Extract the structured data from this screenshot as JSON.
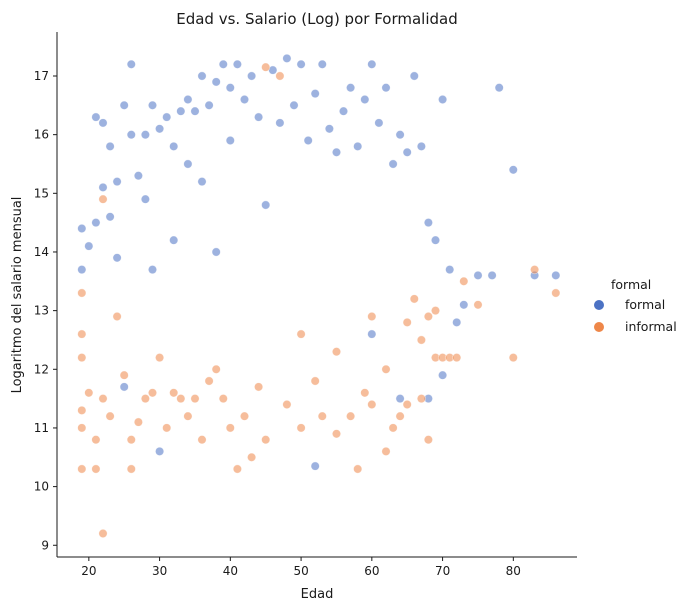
{
  "chart_data": {
    "type": "scatter",
    "title": "Edad vs. Salario (Log) por Formalidad",
    "xlabel": "Edad",
    "ylabel": "Logaritmo del salario mensual",
    "xlim": [
      15.5,
      89
    ],
    "ylim": [
      8.8,
      17.75
    ],
    "xticks": [
      20,
      30,
      40,
      50,
      60,
      70,
      80
    ],
    "yticks": [
      9,
      10,
      11,
      12,
      13,
      14,
      15,
      16,
      17
    ],
    "grid": false,
    "legend": {
      "title": "formal",
      "position": "right"
    },
    "series": [
      {
        "name": "formal",
        "color": "#4c72c4",
        "alpha": 0.55,
        "points": [
          [
            19,
            14.4
          ],
          [
            19,
            13.7
          ],
          [
            20,
            14.1
          ],
          [
            21,
            16.3
          ],
          [
            21,
            14.5
          ],
          [
            22,
            15.1
          ],
          [
            22,
            16.2
          ],
          [
            23,
            15.8
          ],
          [
            23,
            14.6
          ],
          [
            24,
            15.2
          ],
          [
            24,
            13.9
          ],
          [
            25,
            16.5
          ],
          [
            25,
            11.7
          ],
          [
            26,
            17.2
          ],
          [
            26,
            16.0
          ],
          [
            27,
            15.3
          ],
          [
            28,
            16.0
          ],
          [
            28,
            14.9
          ],
          [
            29,
            16.5
          ],
          [
            29,
            13.7
          ],
          [
            30,
            16.1
          ],
          [
            30,
            10.6
          ],
          [
            31,
            16.3
          ],
          [
            32,
            15.8
          ],
          [
            32,
            14.2
          ],
          [
            33,
            16.4
          ],
          [
            34,
            16.6
          ],
          [
            34,
            15.5
          ],
          [
            35,
            16.4
          ],
          [
            36,
            17.0
          ],
          [
            36,
            15.2
          ],
          [
            37,
            16.5
          ],
          [
            38,
            16.9
          ],
          [
            38,
            14.0
          ],
          [
            39,
            17.2
          ],
          [
            40,
            16.8
          ],
          [
            40,
            15.9
          ],
          [
            41,
            17.2
          ],
          [
            42,
            16.6
          ],
          [
            43,
            17.0
          ],
          [
            44,
            16.3
          ],
          [
            45,
            14.8
          ],
          [
            46,
            17.1
          ],
          [
            47,
            16.2
          ],
          [
            48,
            17.3
          ],
          [
            49,
            16.5
          ],
          [
            50,
            17.2
          ],
          [
            51,
            15.9
          ],
          [
            52,
            16.7
          ],
          [
            52,
            10.35
          ],
          [
            53,
            17.2
          ],
          [
            54,
            16.1
          ],
          [
            55,
            15.7
          ],
          [
            56,
            16.4
          ],
          [
            57,
            16.8
          ],
          [
            58,
            15.8
          ],
          [
            59,
            16.6
          ],
          [
            60,
            17.2
          ],
          [
            61,
            16.2
          ],
          [
            62,
            16.8
          ],
          [
            63,
            15.5
          ],
          [
            64,
            16.0
          ],
          [
            65,
            15.7
          ],
          [
            66,
            17.0
          ],
          [
            67,
            15.8
          ],
          [
            68,
            14.5
          ],
          [
            69,
            14.2
          ],
          [
            70,
            16.6
          ],
          [
            70,
            11.9
          ],
          [
            71,
            13.7
          ],
          [
            72,
            12.8
          ],
          [
            73,
            13.1
          ],
          [
            75,
            13.6
          ],
          [
            77,
            13.6
          ],
          [
            78,
            16.8
          ],
          [
            80,
            15.4
          ],
          [
            83,
            13.6
          ],
          [
            86,
            13.6
          ],
          [
            60,
            12.6
          ],
          [
            64,
            11.5
          ],
          [
            68,
            11.5
          ]
        ]
      },
      {
        "name": "informal",
        "color": "#ee8749",
        "alpha": 0.55,
        "points": [
          [
            19,
            13.3
          ],
          [
            19,
            12.6
          ],
          [
            19,
            12.2
          ],
          [
            19,
            11.3
          ],
          [
            19,
            11.0
          ],
          [
            19,
            10.3
          ],
          [
            20,
            11.6
          ],
          [
            21,
            10.3
          ],
          [
            21,
            10.8
          ],
          [
            22,
            9.2
          ],
          [
            22,
            11.5
          ],
          [
            22,
            14.9
          ],
          [
            23,
            11.2
          ],
          [
            24,
            12.9
          ],
          [
            25,
            11.9
          ],
          [
            26,
            10.3
          ],
          [
            26,
            10.8
          ],
          [
            27,
            11.1
          ],
          [
            28,
            11.5
          ],
          [
            29,
            11.6
          ],
          [
            30,
            12.2
          ],
          [
            31,
            11.0
          ],
          [
            32,
            11.6
          ],
          [
            33,
            11.5
          ],
          [
            34,
            11.2
          ],
          [
            35,
            11.5
          ],
          [
            36,
            10.8
          ],
          [
            37,
            11.8
          ],
          [
            38,
            12.0
          ],
          [
            39,
            11.5
          ],
          [
            40,
            11.0
          ],
          [
            41,
            10.3
          ],
          [
            42,
            11.2
          ],
          [
            43,
            10.5
          ],
          [
            44,
            11.7
          ],
          [
            45,
            10.8
          ],
          [
            45,
            17.15
          ],
          [
            47,
            17.0
          ],
          [
            48,
            11.4
          ],
          [
            50,
            11.0
          ],
          [
            52,
            11.8
          ],
          [
            53,
            11.2
          ],
          [
            55,
            10.9
          ],
          [
            57,
            11.2
          ],
          [
            58,
            10.3
          ],
          [
            59,
            11.6
          ],
          [
            60,
            11.4
          ],
          [
            62,
            10.6
          ],
          [
            63,
            11.0
          ],
          [
            64,
            11.2
          ],
          [
            65,
            11.4
          ],
          [
            67,
            11.5
          ],
          [
            68,
            10.8
          ],
          [
            69,
            12.2
          ],
          [
            70,
            12.2
          ],
          [
            71,
            12.2
          ],
          [
            72,
            12.2
          ],
          [
            73,
            13.5
          ],
          [
            75,
            13.1
          ],
          [
            80,
            12.2
          ],
          [
            83,
            13.7
          ],
          [
            86,
            13.3
          ],
          [
            50,
            12.6
          ],
          [
            55,
            12.3
          ],
          [
            60,
            12.9
          ],
          [
            62,
            12.0
          ],
          [
            65,
            12.8
          ],
          [
            66,
            13.2
          ],
          [
            67,
            12.5
          ],
          [
            68,
            12.9
          ],
          [
            69,
            13.0
          ]
        ]
      }
    ]
  }
}
